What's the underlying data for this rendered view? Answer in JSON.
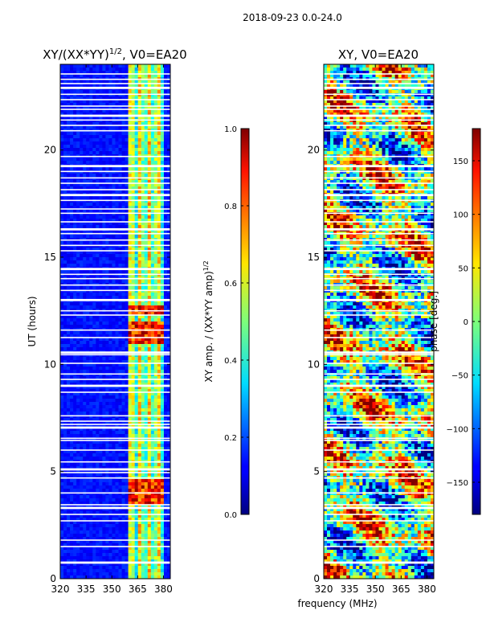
{
  "suptitle": "2018-09-23 0.0-24.0",
  "shared_xlabel": "frequency (MHz)",
  "colors": {
    "stripe": "#ffffff",
    "frame": "#000000"
  },
  "chart_data": [
    {
      "type": "heatmap",
      "title_main": "XY/(XX*YY)",
      "title_sup": "1/2",
      "title_tail": ", V0=EA20",
      "ylabel": "UT (hours)",
      "xlim": [
        320,
        384
      ],
      "ylim": [
        0,
        24
      ],
      "xticks": [
        320,
        335,
        350,
        365,
        380
      ],
      "yticks": [
        0,
        5,
        10,
        15,
        20
      ],
      "colorbar": {
        "label_main": "XY amp. / (XX*YY amp)",
        "label_sup": "1/2",
        "range": [
          0.0,
          1.0
        ],
        "ticks": [
          "0.0",
          "0.2",
          "0.4",
          "0.6",
          "0.8",
          "1.0"
        ],
        "tick_values": [
          0.0,
          0.2,
          0.4,
          0.6,
          0.8,
          1.0
        ]
      },
      "signal_band_mhz": [
        360,
        381
      ],
      "high_amplitude_intervals_ut": [
        [
          3.5,
          4.6
        ],
        [
          11.0,
          12.0
        ],
        [
          12.3,
          12.7
        ]
      ]
    },
    {
      "type": "heatmap",
      "title": "XY, V0=EA20",
      "xlim": [
        320,
        384
      ],
      "ylim": [
        0,
        24
      ],
      "xticks": [
        320,
        335,
        350,
        365,
        380
      ],
      "yticks": [
        0,
        5,
        10,
        15,
        20
      ],
      "colorbar": {
        "label": "phase [deg.]",
        "range": [
          -180,
          180
        ],
        "ticks": [
          "150",
          "100",
          "50",
          "0",
          "−50",
          "−100",
          "−150"
        ],
        "tick_values": [
          150,
          100,
          50,
          0,
          -50,
          -100,
          -150
        ]
      }
    }
  ],
  "flagged_ut_hours": [
    0.75,
    1.5,
    1.8,
    2.7,
    3.0,
    3.3,
    3.45,
    4.0,
    4.7,
    4.95,
    5.1,
    5.45,
    6.0,
    6.45,
    6.55,
    7.05,
    7.2,
    7.35,
    7.6,
    8.7,
    9.0,
    9.3,
    9.55,
    10.05,
    10.45,
    10.55,
    11.25,
    11.6,
    12.3,
    12.5,
    13.0,
    13.45,
    13.7,
    14.0,
    14.2,
    14.45,
    15.3,
    15.55,
    15.8,
    16.1,
    16.3,
    16.65,
    17.05,
    17.25,
    17.65,
    17.9,
    18.15,
    18.45,
    18.7,
    19.0,
    19.25,
    19.7,
    20.9,
    21.15,
    21.4,
    21.6,
    21.9,
    22.05,
    22.35,
    22.6,
    22.9,
    23.1,
    23.3,
    23.55
  ]
}
